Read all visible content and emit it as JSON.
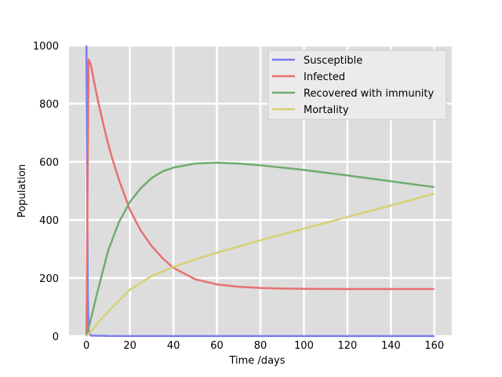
{
  "chart_data": {
    "type": "line",
    "title": "",
    "xlabel": "Time /days",
    "ylabel": "Population",
    "xlim": [
      -8,
      168
    ],
    "ylim": [
      0,
      1000
    ],
    "xticks": [
      0,
      20,
      40,
      60,
      80,
      100,
      120,
      140,
      160
    ],
    "yticks": [
      0,
      200,
      400,
      600,
      800,
      1000
    ],
    "grid": true,
    "background": "#dddddd",
    "gridColor": "#ffffff",
    "legend": {
      "placement": "top-right",
      "background": "#ebebeb"
    },
    "series": [
      {
        "name": "Susceptible",
        "color": "#7b7bf0",
        "x": [
          0,
          0.3,
          0.6,
          1,
          2,
          10,
          40,
          80,
          120,
          160
        ],
        "y": [
          1000,
          600,
          150,
          20,
          2,
          0.5,
          0.3,
          0.3,
          0.3,
          0.3
        ]
      },
      {
        "name": "Infected",
        "color": "#e8706f",
        "x": [
          0,
          0.4,
          1,
          2,
          4,
          6,
          8,
          10,
          12,
          15,
          20,
          25,
          30,
          35,
          40,
          50,
          60,
          70,
          80,
          90,
          100,
          120,
          140,
          160
        ],
        "y": [
          1,
          400,
          952,
          935,
          858,
          787,
          722,
          662,
          608,
          537,
          435,
          363,
          310,
          268,
          235,
          196,
          178,
          170,
          166,
          164,
          163,
          162,
          162,
          162
        ]
      },
      {
        "name": "Recovered with immunity",
        "color": "#6fac6f",
        "x": [
          0,
          2,
          5,
          10,
          15,
          20,
          25,
          30,
          35,
          40,
          50,
          60,
          70,
          80,
          100,
          120,
          140,
          160
        ],
        "y": [
          0,
          58,
          150,
          295,
          393,
          462,
          509,
          544,
          567,
          580,
          594,
          597,
          594,
          588,
          572,
          553,
          533,
          513
        ],
        "note": ""
      },
      {
        "name": "Mortality",
        "color": "#d6d174",
        "x": [
          0,
          2,
          5,
          10,
          20,
          30,
          40,
          50,
          60,
          80,
          100,
          120,
          140,
          160
        ],
        "y": [
          0,
          15,
          43,
          85,
          160,
          207,
          238,
          264,
          287,
          330,
          370,
          410,
          450,
          490
        ]
      }
    ]
  }
}
